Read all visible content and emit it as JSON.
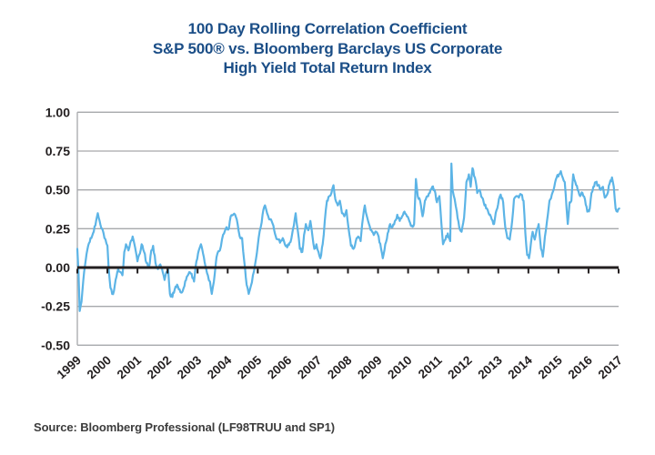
{
  "header": {
    "title_lines": [
      "100 Day Rolling Correlation Coefficient",
      "S&P 500® vs. Bloomberg Barclays US Corporate",
      "High Yield Total Return Index"
    ]
  },
  "footer": {
    "source": "Source: Bloomberg Professional (LF98TRUU and SP1)"
  },
  "colors": {
    "title": "#1B4E87",
    "line": "#5CB4E6",
    "grid": "#A6A8AB",
    "zero_line": "#231F20",
    "tick_label": "#231F20",
    "source_text": "#3C3C3C",
    "background": "#FFFFFF"
  },
  "chart_data": {
    "type": "line",
    "title": "100 Day Rolling Correlation Coefficient S&P 500® vs. Bloomberg Barclays US Corporate High Yield Total Return Index",
    "xlabel": "",
    "ylabel": "",
    "xlim": [
      1999,
      2017.05
    ],
    "ylim": [
      -0.5,
      1.0
    ],
    "grid": "horizontal",
    "legend": "none",
    "x_ticks": [
      1999,
      2000,
      2001,
      2002,
      2003,
      2004,
      2005,
      2006,
      2007,
      2008,
      2009,
      2010,
      2011,
      2012,
      2013,
      2014,
      2015,
      2016,
      2017
    ],
    "x_tick_labels": [
      "1999",
      "2000",
      "2001",
      "2002",
      "2003",
      "2004",
      "2005",
      "2006",
      "2007",
      "2008",
      "2009",
      "2010",
      "2011",
      "2012",
      "2013",
      "2014",
      "2015",
      "2016",
      "2017"
    ],
    "y_ticks": [
      1.0,
      0.75,
      0.5,
      0.25,
      0.0,
      -0.25,
      -0.5
    ],
    "y_tick_labels": [
      "1.00",
      "0.75",
      "0.50",
      "0.25",
      "0.00",
      "-0.25",
      "-0.50"
    ],
    "series": [
      {
        "name": "100-day rolling correlation",
        "color": "#5CB4E6",
        "points": [
          [
            1999.0,
            0.12
          ],
          [
            1999.04,
            -0.03
          ],
          [
            1999.08,
            -0.28
          ],
          [
            1999.14,
            -0.22
          ],
          [
            1999.2,
            -0.08
          ],
          [
            1999.28,
            0.05
          ],
          [
            1999.36,
            0.14
          ],
          [
            1999.44,
            0.19
          ],
          [
            1999.52,
            0.22
          ],
          [
            1999.6,
            0.27
          ],
          [
            1999.68,
            0.35
          ],
          [
            1999.74,
            0.3
          ],
          [
            1999.82,
            0.25
          ],
          [
            1999.9,
            0.19
          ],
          [
            2000.0,
            0.14
          ],
          [
            2000.04,
            0.0
          ],
          [
            2000.1,
            -0.13
          ],
          [
            2000.16,
            -0.17
          ],
          [
            2000.22,
            -0.15
          ],
          [
            2000.3,
            -0.06
          ],
          [
            2000.36,
            -0.01
          ],
          [
            2000.44,
            -0.03
          ],
          [
            2000.5,
            -0.05
          ],
          [
            2000.56,
            0.1
          ],
          [
            2000.62,
            0.15
          ],
          [
            2000.7,
            0.11
          ],
          [
            2000.76,
            0.16
          ],
          [
            2000.84,
            0.2
          ],
          [
            2000.92,
            0.13
          ],
          [
            2001.0,
            0.04
          ],
          [
            2001.08,
            0.09
          ],
          [
            2001.14,
            0.15
          ],
          [
            2001.22,
            0.1
          ],
          [
            2001.3,
            0.03
          ],
          [
            2001.38,
            0.0
          ],
          [
            2001.46,
            0.11
          ],
          [
            2001.52,
            0.14
          ],
          [
            2001.6,
            0.03
          ],
          [
            2001.68,
            -0.01
          ],
          [
            2001.76,
            0.02
          ],
          [
            2001.84,
            -0.03
          ],
          [
            2001.9,
            -0.08
          ],
          [
            2001.96,
            -0.03
          ],
          [
            2002.02,
            -0.01
          ],
          [
            2002.08,
            -0.17
          ],
          [
            2002.16,
            -0.19
          ],
          [
            2002.24,
            -0.14
          ],
          [
            2002.32,
            -0.11
          ],
          [
            2002.4,
            -0.14
          ],
          [
            2002.48,
            -0.16
          ],
          [
            2002.56,
            -0.12
          ],
          [
            2002.64,
            -0.06
          ],
          [
            2002.72,
            -0.03
          ],
          [
            2002.8,
            -0.04
          ],
          [
            2002.88,
            -0.09
          ],
          [
            2002.96,
            0.04
          ],
          [
            2003.04,
            0.11
          ],
          [
            2003.11,
            0.15
          ],
          [
            2003.18,
            0.09
          ],
          [
            2003.26,
            0.01
          ],
          [
            2003.34,
            -0.05
          ],
          [
            2003.41,
            -0.09
          ],
          [
            2003.47,
            -0.17
          ],
          [
            2003.54,
            -0.09
          ],
          [
            2003.6,
            0.02
          ],
          [
            2003.66,
            0.09
          ],
          [
            2003.74,
            0.11
          ],
          [
            2003.81,
            0.18
          ],
          [
            2003.88,
            0.22
          ],
          [
            2003.96,
            0.26
          ],
          [
            2004.04,
            0.25
          ],
          [
            2004.1,
            0.33
          ],
          [
            2004.18,
            0.34
          ],
          [
            2004.25,
            0.34
          ],
          [
            2004.33,
            0.28
          ],
          [
            2004.4,
            0.2
          ],
          [
            2004.48,
            0.19
          ],
          [
            2004.55,
            0.04
          ],
          [
            2004.63,
            -0.11
          ],
          [
            2004.7,
            -0.17
          ],
          [
            2004.77,
            -0.12
          ],
          [
            2004.84,
            -0.05
          ],
          [
            2004.91,
            0.02
          ],
          [
            2004.97,
            0.09
          ],
          [
            2005.03,
            0.19
          ],
          [
            2005.1,
            0.26
          ],
          [
            2005.16,
            0.34
          ],
          [
            2005.24,
            0.4
          ],
          [
            2005.31,
            0.35
          ],
          [
            2005.38,
            0.31
          ],
          [
            2005.44,
            0.31
          ],
          [
            2005.52,
            0.27
          ],
          [
            2005.6,
            0.2
          ],
          [
            2005.68,
            0.18
          ],
          [
            2005.74,
            0.16
          ],
          [
            2005.83,
            0.19
          ],
          [
            2005.9,
            0.15
          ],
          [
            2005.98,
            0.13
          ],
          [
            2006.06,
            0.16
          ],
          [
            2006.12,
            0.19
          ],
          [
            2006.2,
            0.27
          ],
          [
            2006.26,
            0.35
          ],
          [
            2006.33,
            0.24
          ],
          [
            2006.4,
            0.12
          ],
          [
            2006.48,
            0.1
          ],
          [
            2006.54,
            0.21
          ],
          [
            2006.6,
            0.28
          ],
          [
            2006.68,
            0.24
          ],
          [
            2006.75,
            0.3
          ],
          [
            2006.82,
            0.2
          ],
          [
            2006.88,
            0.12
          ],
          [
            2006.95,
            0.15
          ],
          [
            2007.02,
            0.1
          ],
          [
            2007.08,
            0.06
          ],
          [
            2007.16,
            0.15
          ],
          [
            2007.23,
            0.3
          ],
          [
            2007.3,
            0.43
          ],
          [
            2007.38,
            0.46
          ],
          [
            2007.45,
            0.48
          ],
          [
            2007.52,
            0.53
          ],
          [
            2007.58,
            0.44
          ],
          [
            2007.66,
            0.4
          ],
          [
            2007.73,
            0.43
          ],
          [
            2007.8,
            0.35
          ],
          [
            2007.88,
            0.33
          ],
          [
            2007.95,
            0.37
          ],
          [
            2008.02,
            0.25
          ],
          [
            2008.1,
            0.14
          ],
          [
            2008.18,
            0.12
          ],
          [
            2008.26,
            0.17
          ],
          [
            2008.34,
            0.2
          ],
          [
            2008.42,
            0.17
          ],
          [
            2008.5,
            0.32
          ],
          [
            2008.56,
            0.4
          ],
          [
            2008.63,
            0.33
          ],
          [
            2008.7,
            0.28
          ],
          [
            2008.78,
            0.24
          ],
          [
            2008.86,
            0.21
          ],
          [
            2008.94,
            0.23
          ],
          [
            2009.02,
            0.2
          ],
          [
            2009.1,
            0.12
          ],
          [
            2009.16,
            0.06
          ],
          [
            2009.24,
            0.15
          ],
          [
            2009.32,
            0.22
          ],
          [
            2009.4,
            0.28
          ],
          [
            2009.48,
            0.26
          ],
          [
            2009.56,
            0.3
          ],
          [
            2009.64,
            0.34
          ],
          [
            2009.72,
            0.3
          ],
          [
            2009.8,
            0.33
          ],
          [
            2009.88,
            0.36
          ],
          [
            2009.96,
            0.33
          ],
          [
            2010.04,
            0.3
          ],
          [
            2010.12,
            0.27
          ],
          [
            2010.2,
            0.28
          ],
          [
            2010.26,
            0.57
          ],
          [
            2010.32,
            0.46
          ],
          [
            2010.4,
            0.43
          ],
          [
            2010.48,
            0.33
          ],
          [
            2010.56,
            0.43
          ],
          [
            2010.64,
            0.46
          ],
          [
            2010.72,
            0.48
          ],
          [
            2010.8,
            0.52
          ],
          [
            2010.88,
            0.5
          ],
          [
            2010.96,
            0.42
          ],
          [
            2011.04,
            0.46
          ],
          [
            2011.1,
            0.3
          ],
          [
            2011.16,
            0.15
          ],
          [
            2011.24,
            0.18
          ],
          [
            2011.32,
            0.22
          ],
          [
            2011.4,
            0.17
          ],
          [
            2011.44,
            0.67
          ],
          [
            2011.48,
            0.5
          ],
          [
            2011.55,
            0.44
          ],
          [
            2011.62,
            0.36
          ],
          [
            2011.7,
            0.26
          ],
          [
            2011.78,
            0.23
          ],
          [
            2011.86,
            0.32
          ],
          [
            2011.94,
            0.55
          ],
          [
            2012.02,
            0.6
          ],
          [
            2012.08,
            0.52
          ],
          [
            2012.14,
            0.64
          ],
          [
            2012.22,
            0.58
          ],
          [
            2012.3,
            0.48
          ],
          [
            2012.38,
            0.5
          ],
          [
            2012.46,
            0.45
          ],
          [
            2012.54,
            0.4
          ],
          [
            2012.62,
            0.38
          ],
          [
            2012.7,
            0.34
          ],
          [
            2012.78,
            0.31
          ],
          [
            2012.86,
            0.28
          ],
          [
            2012.94,
            0.37
          ],
          [
            2013.02,
            0.44
          ],
          [
            2013.08,
            0.47
          ],
          [
            2013.16,
            0.42
          ],
          [
            2013.23,
            0.26
          ],
          [
            2013.3,
            0.19
          ],
          [
            2013.38,
            0.18
          ],
          [
            2013.46,
            0.3
          ],
          [
            2013.52,
            0.44
          ],
          [
            2013.6,
            0.46
          ],
          [
            2013.68,
            0.45
          ],
          [
            2013.76,
            0.47
          ],
          [
            2013.84,
            0.43
          ],
          [
            2013.9,
            0.22
          ],
          [
            2013.96,
            0.08
          ],
          [
            2014.02,
            0.06
          ],
          [
            2014.08,
            0.15
          ],
          [
            2014.14,
            0.23
          ],
          [
            2014.21,
            0.18
          ],
          [
            2014.28,
            0.25
          ],
          [
            2014.34,
            0.28
          ],
          [
            2014.42,
            0.12
          ],
          [
            2014.48,
            0.07
          ],
          [
            2014.55,
            0.2
          ],
          [
            2014.62,
            0.3
          ],
          [
            2014.7,
            0.43
          ],
          [
            2014.78,
            0.47
          ],
          [
            2014.86,
            0.52
          ],
          [
            2014.94,
            0.58
          ],
          [
            2015.02,
            0.6
          ],
          [
            2015.08,
            0.62
          ],
          [
            2015.14,
            0.58
          ],
          [
            2015.21,
            0.55
          ],
          [
            2015.27,
            0.38
          ],
          [
            2015.31,
            0.28
          ],
          [
            2015.37,
            0.42
          ],
          [
            2015.43,
            0.43
          ],
          [
            2015.49,
            0.6
          ],
          [
            2015.56,
            0.55
          ],
          [
            2015.64,
            0.5
          ],
          [
            2015.72,
            0.46
          ],
          [
            2015.8,
            0.48
          ],
          [
            2015.88,
            0.44
          ],
          [
            2015.96,
            0.36
          ],
          [
            2016.04,
            0.38
          ],
          [
            2016.1,
            0.48
          ],
          [
            2016.16,
            0.52
          ],
          [
            2016.24,
            0.55
          ],
          [
            2016.32,
            0.53
          ],
          [
            2016.4,
            0.5
          ],
          [
            2016.48,
            0.52
          ],
          [
            2016.54,
            0.45
          ],
          [
            2016.62,
            0.47
          ],
          [
            2016.7,
            0.54
          ],
          [
            2016.78,
            0.58
          ],
          [
            2016.84,
            0.52
          ],
          [
            2016.9,
            0.38
          ],
          [
            2016.96,
            0.36
          ],
          [
            2017.02,
            0.38
          ]
        ]
      }
    ]
  }
}
